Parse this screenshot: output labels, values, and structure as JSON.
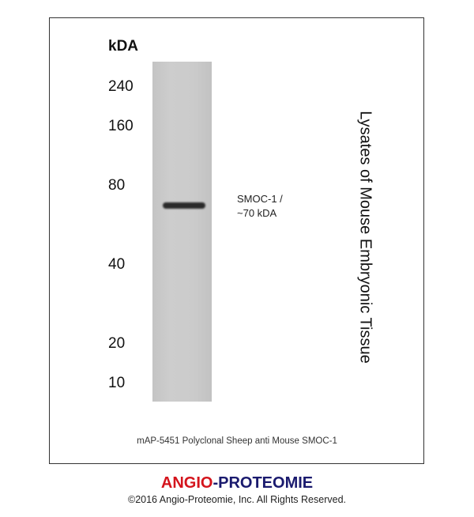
{
  "unit_label": "kDA",
  "markers": [
    "240",
    "160",
    "80",
    "40",
    "20",
    "10"
  ],
  "band_label": [
    "SMOC-1  /",
    "~70 kDA"
  ],
  "sample": "Lysates of Mouse Embryonic Tissue",
  "caption": "mAP-5451 Polyclonal Sheep anti Mouse SMOC-1",
  "brand": {
    "part1": "ANGIO",
    "sep": "-",
    "part2": "PROTEOMIE",
    "color1": "#d4141c",
    "color2": "#1a1a6e"
  },
  "copyright": "©2016 Angio-Proteomie, Inc.  All Rights Reserved."
}
